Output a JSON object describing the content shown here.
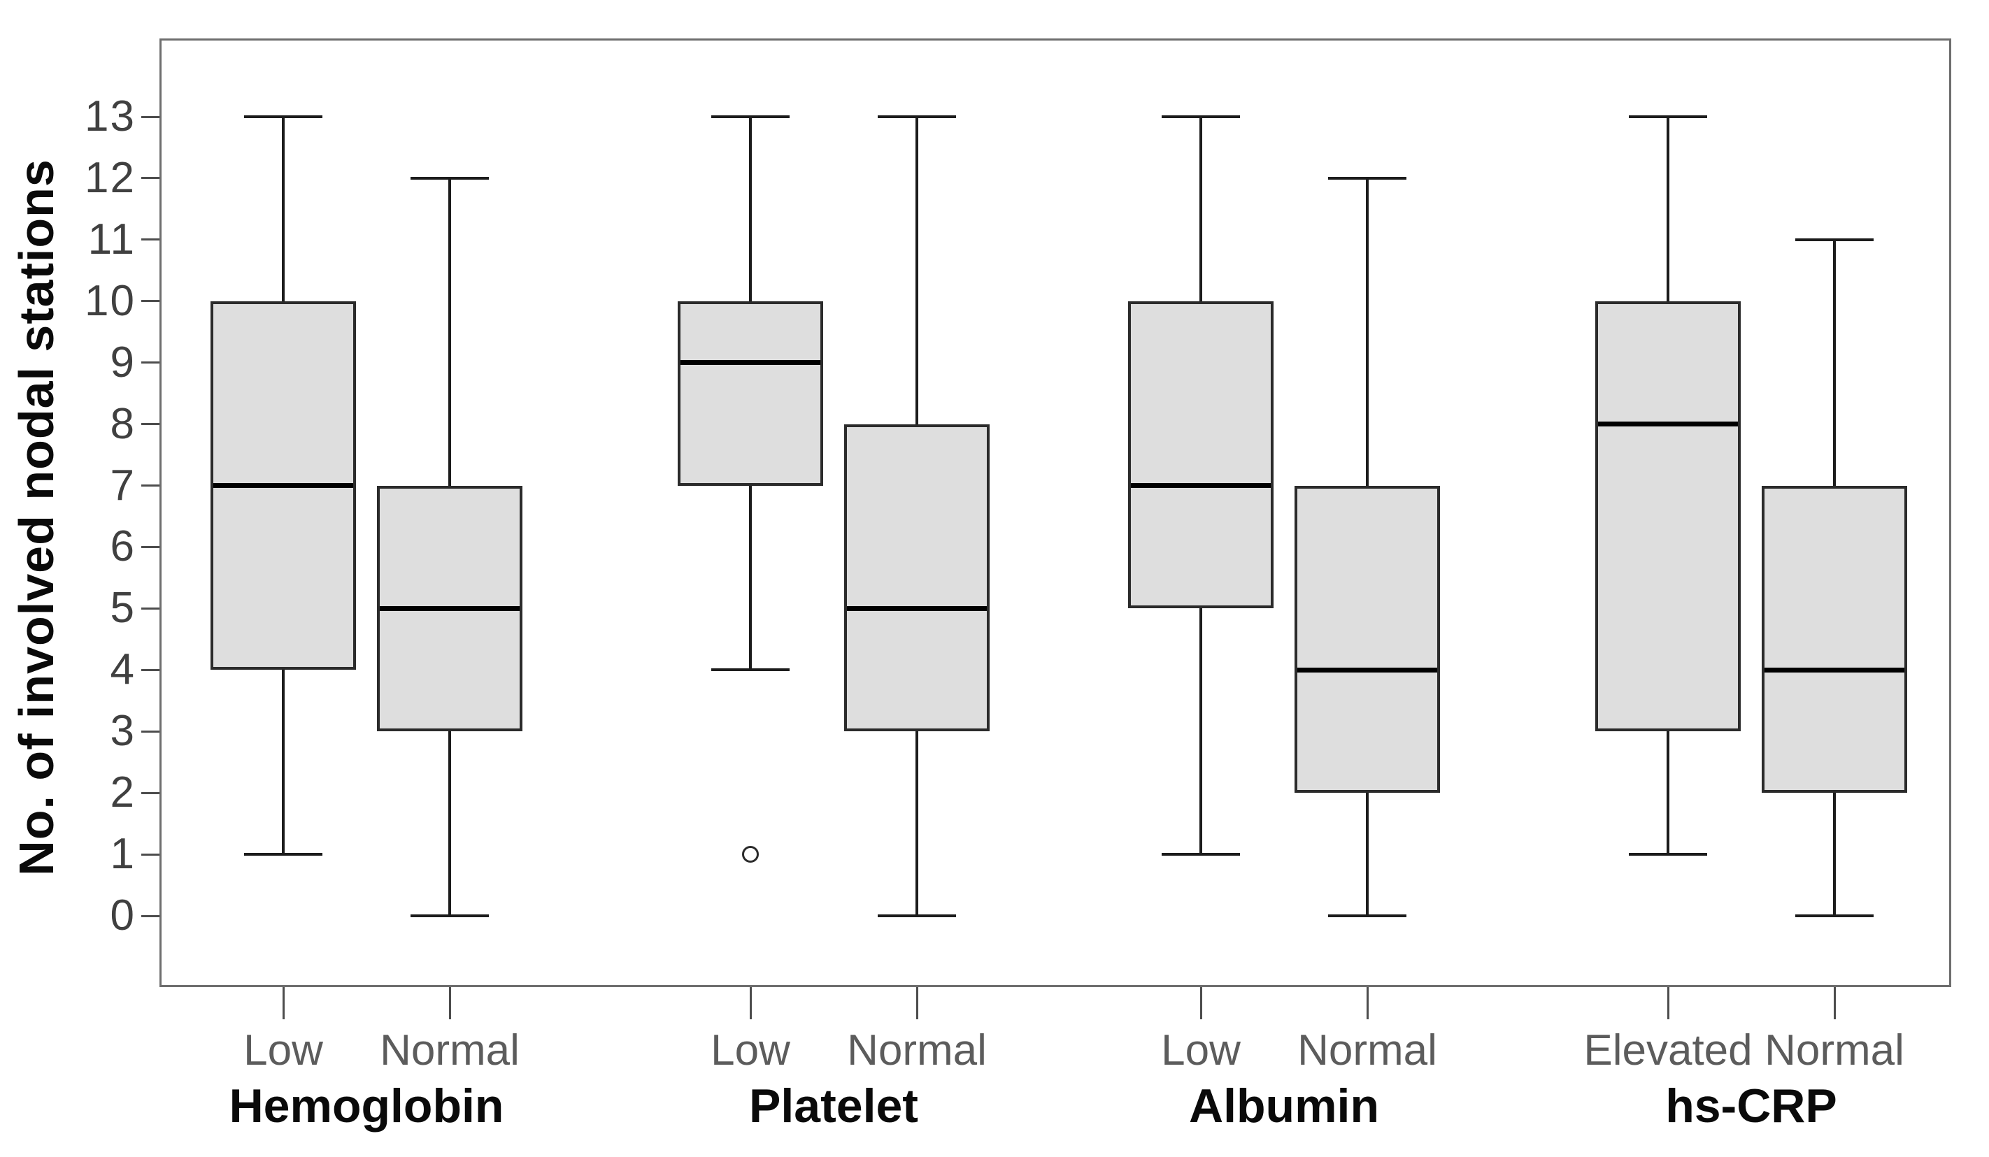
{
  "figure": {
    "background": "#ffffff"
  },
  "chart_data": {
    "type": "boxplot",
    "title": "",
    "xlabel": "",
    "ylabel": "No. of involved nodal stations",
    "ylim": [
      0,
      13
    ],
    "y_ticks": [
      0,
      1,
      2,
      3,
      4,
      5,
      6,
      7,
      8,
      9,
      10,
      11,
      12,
      13
    ],
    "grid": false,
    "legend": false,
    "groups": [
      {
        "label": "Hemoglobin",
        "boxes": [
          {
            "category": "Low",
            "min": 1,
            "q1": 4,
            "median": 7,
            "q3": 10,
            "max": 13,
            "outliers": []
          },
          {
            "category": "Normal",
            "min": 0,
            "q1": 3,
            "median": 5,
            "q3": 7,
            "max": 12,
            "outliers": []
          }
        ]
      },
      {
        "label": "Platelet",
        "boxes": [
          {
            "category": "Low",
            "min": 4,
            "q1": 7,
            "median": 9,
            "q3": 10,
            "max": 13,
            "outliers": [
              1
            ]
          },
          {
            "category": "Normal",
            "min": 0,
            "q1": 3,
            "median": 5,
            "q3": 8,
            "max": 13,
            "outliers": []
          }
        ]
      },
      {
        "label": "Albumin",
        "boxes": [
          {
            "category": "Low",
            "min": 1,
            "q1": 5,
            "median": 7,
            "q3": 10,
            "max": 13,
            "outliers": []
          },
          {
            "category": "Normal",
            "min": 0,
            "q1": 2,
            "median": 4,
            "q3": 7,
            "max": 12,
            "outliers": []
          }
        ]
      },
      {
        "label": "hs-CRP",
        "boxes": [
          {
            "category": "Elevated",
            "min": 1,
            "q1": 3,
            "median": 8,
            "q3": 10,
            "max": 13,
            "outliers": []
          },
          {
            "category": "Normal",
            "min": 0,
            "q1": 2,
            "median": 4,
            "q3": 7,
            "max": 11,
            "outliers": []
          }
        ]
      }
    ],
    "colors": {
      "box_fill": "#dedede",
      "box_border": "#2b2b2b",
      "median": "#000000",
      "whisker": "#1c1c1c",
      "axis_frame": "#6e6e6e",
      "tick_label": "#404040",
      "category_label": "#5c5c5c",
      "group_label": "#0a0a0a",
      "background": "#ffffff"
    }
  }
}
